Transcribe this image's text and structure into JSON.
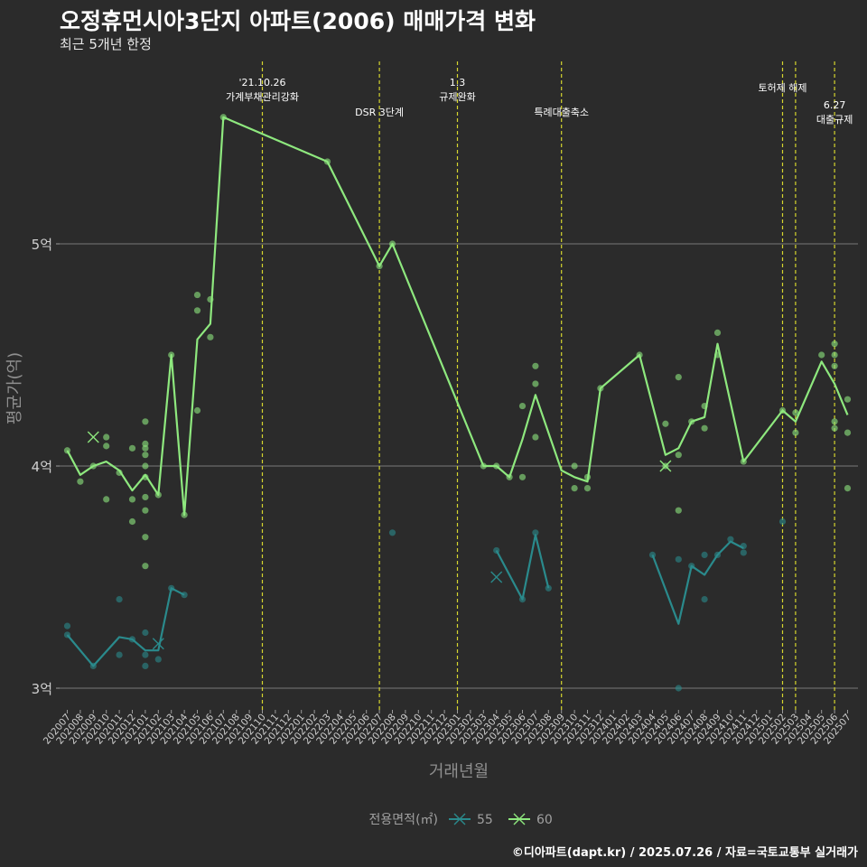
{
  "title": "오정휴먼시아3단지 아파트(2006) 매매가격 변화",
  "subtitle": "최근 5개년 한정",
  "caption": "©디아파트(dapt.kr) / 2025.07.26 / 자료=국토교통부 실거래가",
  "chart_data": {
    "type": "line",
    "xlabel": "거래년월",
    "ylabel": "평균가(억)",
    "ylim": [
      2.9,
      5.5
    ],
    "yticks": [
      {
        "v": 3,
        "label": "3억"
      },
      {
        "v": 4,
        "label": "4억"
      },
      {
        "v": 5,
        "label": "5억"
      }
    ],
    "categories": [
      "202007",
      "202008",
      "202009",
      "202010",
      "202011",
      "202012",
      "202101",
      "202102",
      "202103",
      "202104",
      "202105",
      "202106",
      "202107",
      "202108",
      "202109",
      "202110",
      "202111",
      "202112",
      "202201",
      "202202",
      "202203",
      "202204",
      "202205",
      "202206",
      "202207",
      "202208",
      "202209",
      "202210",
      "202211",
      "202212",
      "202301",
      "202302",
      "202303",
      "202304",
      "202305",
      "202306",
      "202307",
      "202308",
      "202309",
      "202310",
      "202311",
      "202312",
      "202401",
      "202402",
      "202403",
      "202404",
      "202405",
      "202406",
      "202407",
      "202408",
      "202409",
      "202410",
      "202411",
      "202412",
      "202501",
      "202502",
      "202503",
      "202504",
      "202505",
      "202506",
      "202507"
    ],
    "legend_title": "전용면적(㎡)",
    "series": [
      {
        "name": "55",
        "color": "#2a8a8c",
        "line": [
          [
            "202007",
            3.24
          ],
          [
            "202009",
            3.1
          ],
          [
            "202011",
            3.23
          ],
          [
            "202012",
            3.22
          ],
          [
            "202101",
            3.17
          ],
          [
            "202102",
            3.17
          ],
          [
            "202103",
            3.45
          ],
          [
            "202104",
            3.42
          ],
          null,
          [
            "202304",
            3.62
          ],
          [
            "202306",
            3.4
          ],
          [
            "202307",
            3.69
          ],
          [
            "202308",
            3.45
          ],
          null,
          [
            "202404",
            3.6
          ],
          [
            "202406",
            3.29
          ],
          [
            "202407",
            3.55
          ],
          [
            "202408",
            3.51
          ],
          [
            "202409",
            3.6
          ],
          [
            "202410",
            3.66
          ],
          [
            "202411",
            3.63
          ]
        ],
        "points": [
          [
            "202007",
            3.28
          ],
          [
            "202007",
            3.24
          ],
          [
            "202009",
            3.1
          ],
          [
            "202011",
            3.4
          ],
          [
            "202011",
            3.15
          ],
          [
            "202012",
            3.22
          ],
          [
            "202101",
            3.15
          ],
          [
            "202101",
            3.1
          ],
          [
            "202101",
            3.25
          ],
          [
            "202102",
            3.13
          ],
          [
            "202103",
            3.45
          ],
          [
            "202104",
            3.42
          ],
          [
            "202208",
            3.7
          ],
          [
            "202304",
            3.62
          ],
          [
            "202306",
            3.4
          ],
          [
            "202307",
            3.7
          ],
          [
            "202308",
            3.45
          ],
          [
            "202404",
            3.6
          ],
          [
            "202406",
            3.58
          ],
          [
            "202406",
            3.0
          ],
          [
            "202407",
            3.55
          ],
          [
            "202408",
            3.6
          ],
          [
            "202408",
            3.4
          ],
          [
            "202409",
            3.6
          ],
          [
            "202410",
            3.67
          ],
          [
            "202411",
            3.64
          ],
          [
            "202411",
            3.61
          ],
          [
            "202502",
            3.75
          ]
        ],
        "cross_markers": [
          [
            "202102",
            3.2
          ],
          [
            "202304",
            3.5
          ]
        ]
      },
      {
        "name": "60",
        "color": "#8ee87e",
        "line": [
          [
            "202007",
            4.07
          ],
          [
            "202008",
            3.96
          ],
          [
            "202009",
            4.0
          ],
          [
            "202010",
            4.02
          ],
          [
            "202011",
            3.98
          ],
          [
            "202012",
            3.89
          ],
          [
            "202101",
            3.96
          ],
          [
            "202102",
            3.87
          ],
          [
            "202103",
            4.5
          ],
          [
            "202104",
            3.78
          ],
          [
            "202105",
            4.57
          ],
          [
            "202106",
            4.64
          ],
          [
            "202107",
            5.57
          ],
          [
            "202203",
            5.37
          ],
          [
            "202207",
            4.9
          ],
          [
            "202208",
            5.0
          ],
          [
            "202303",
            4.0
          ],
          [
            "202304",
            4.0
          ],
          [
            "202305",
            3.95
          ],
          [
            "202306",
            4.12
          ],
          [
            "202307",
            4.32
          ],
          [
            "202309",
            3.98
          ],
          [
            "202310",
            3.95
          ],
          [
            "202311",
            3.93
          ],
          [
            "202312",
            4.35
          ],
          [
            "202403",
            4.5
          ],
          [
            "202405",
            4.05
          ],
          [
            "202406",
            4.08
          ],
          [
            "202407",
            4.2
          ],
          [
            "202408",
            4.22
          ],
          [
            "202409",
            4.55
          ],
          [
            "202411",
            4.02
          ],
          [
            "202502",
            4.25
          ],
          [
            "202503",
            4.2
          ],
          [
            "202505",
            4.47
          ],
          [
            "202506",
            4.37
          ],
          [
            "202507",
            4.23
          ]
        ],
        "points": [
          [
            "202007",
            4.07
          ],
          [
            "202008",
            3.93
          ],
          [
            "202009",
            4.0
          ],
          [
            "202010",
            4.13
          ],
          [
            "202010",
            4.09
          ],
          [
            "202010",
            3.85
          ],
          [
            "202011",
            3.97
          ],
          [
            "202012",
            4.08
          ],
          [
            "202012",
            3.85
          ],
          [
            "202012",
            3.75
          ],
          [
            "202101",
            4.2
          ],
          [
            "202101",
            4.1
          ],
          [
            "202101",
            4.08
          ],
          [
            "202101",
            4.05
          ],
          [
            "202101",
            4.0
          ],
          [
            "202101",
            3.95
          ],
          [
            "202101",
            3.86
          ],
          [
            "202101",
            3.8
          ],
          [
            "202101",
            3.68
          ],
          [
            "202101",
            3.55
          ],
          [
            "202102",
            3.87
          ],
          [
            "202103",
            4.5
          ],
          [
            "202104",
            3.78
          ],
          [
            "202105",
            4.77
          ],
          [
            "202105",
            4.7
          ],
          [
            "202105",
            4.25
          ],
          [
            "202106",
            4.75
          ],
          [
            "202106",
            4.58
          ],
          [
            "202107",
            5.57
          ],
          [
            "202203",
            5.37
          ],
          [
            "202207",
            4.9
          ],
          [
            "202208",
            5.0
          ],
          [
            "202303",
            4.0
          ],
          [
            "202304",
            4.0
          ],
          [
            "202305",
            3.95
          ],
          [
            "202306",
            4.27
          ],
          [
            "202306",
            3.95
          ],
          [
            "202307",
            4.45
          ],
          [
            "202307",
            4.37
          ],
          [
            "202307",
            4.13
          ],
          [
            "202310",
            4.0
          ],
          [
            "202310",
            3.9
          ],
          [
            "202311",
            3.95
          ],
          [
            "202311",
            3.9
          ],
          [
            "202312",
            4.35
          ],
          [
            "202403",
            4.5
          ],
          [
            "202405",
            4.19
          ],
          [
            "202405",
            4.0
          ],
          [
            "202406",
            4.4
          ],
          [
            "202406",
            4.05
          ],
          [
            "202406",
            3.8
          ],
          [
            "202407",
            4.2
          ],
          [
            "202408",
            4.27
          ],
          [
            "202408",
            4.17
          ],
          [
            "202409",
            4.6
          ],
          [
            "202409",
            4.5
          ],
          [
            "202411",
            4.02
          ],
          [
            "202502",
            4.25
          ],
          [
            "202503",
            4.24
          ],
          [
            "202503",
            4.15
          ],
          [
            "202505",
            4.5
          ],
          [
            "202506",
            4.55
          ],
          [
            "202506",
            4.5
          ],
          [
            "202506",
            4.45
          ],
          [
            "202506",
            4.2
          ],
          [
            "202506",
            4.17
          ],
          [
            "202507",
            4.3
          ],
          [
            "202507",
            4.15
          ],
          [
            "202507",
            3.9
          ]
        ],
        "cross_markers": [
          [
            "202009",
            4.13
          ],
          [
            "202405",
            4.0
          ]
        ]
      }
    ],
    "events": [
      {
        "at": "202110",
        "lines": [
          "'21.10.26",
          "가계부채관리강화"
        ],
        "row": 0
      },
      {
        "at": "202207",
        "lines": [
          "DSR 3단계"
        ],
        "row": 2
      },
      {
        "at": "202301",
        "lines": [
          "1.3",
          "규제완화"
        ],
        "row": 0
      },
      {
        "at": "202309",
        "lines": [
          "특례대출축소"
        ],
        "row": 2
      },
      {
        "at": "202502",
        "lines": [
          "토허제 해제"
        ],
        "row": 1
      },
      {
        "at": "202503",
        "lines": [],
        "row": 1
      },
      {
        "at": "202506",
        "lines": [
          "6.27",
          "대출규제"
        ],
        "row": 3
      }
    ]
  }
}
